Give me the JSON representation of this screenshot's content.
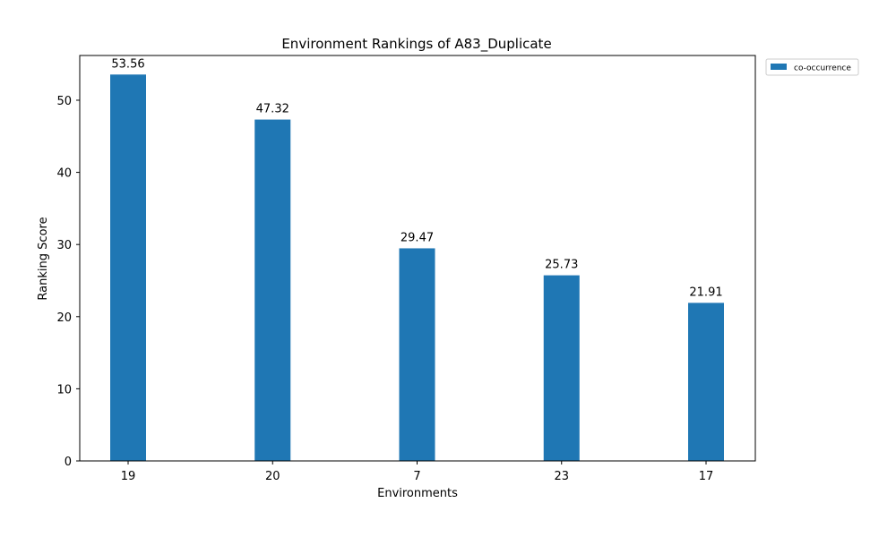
{
  "chart_data": {
    "type": "bar",
    "title": "Environment Rankings of A83_Duplicate",
    "xlabel": "Environments",
    "ylabel": "Ranking Score",
    "categories": [
      "19",
      "20",
      "7",
      "23",
      "17"
    ],
    "series": [
      {
        "name": "co-occurrence",
        "values": [
          53.56,
          47.32,
          29.47,
          25.73,
          21.91
        ],
        "color": "#1f77b4"
      }
    ],
    "data_labels": [
      "53.56",
      "47.32",
      "29.47",
      "25.73",
      "21.91"
    ],
    "ylim": [
      0,
      56.2
    ],
    "yticks": [
      0,
      10,
      20,
      30,
      40,
      50
    ],
    "grid": false,
    "legend_position": "outside-top-right"
  }
}
